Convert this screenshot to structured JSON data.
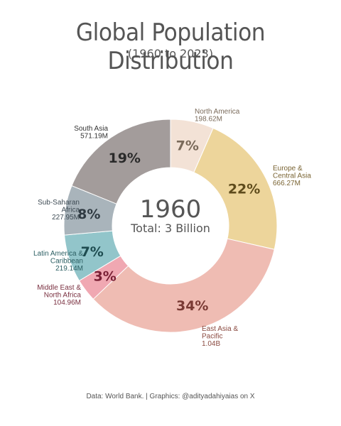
{
  "title": "Global Population Distribution",
  "subtitle": "(1960 to 2023)",
  "footer": "Data: World Bank.  |  Graphics: @adityadahiyaias on X",
  "chart_data": {
    "type": "pie",
    "variant": "donut",
    "center_year": "1960",
    "center_total": "Total: 3 Billion",
    "slices": [
      {
        "name": "North America",
        "lines": [
          "North America"
        ],
        "value_label": "198.62M",
        "value": 198.62,
        "pct_label": "7%",
        "color": "#f3e2d6",
        "text_color": "#7a6a5a",
        "pct_color": "#7a6a5a"
      },
      {
        "name": "Europe & Central Asia",
        "lines": [
          "Europe &",
          "Central Asia"
        ],
        "value_label": "666.27M",
        "value": 666.27,
        "pct_label": "22%",
        "color": "#edd59b",
        "text_color": "#7a6433",
        "pct_color": "#5f4c1c"
      },
      {
        "name": "East Asia & Pacific",
        "lines": [
          "East Asia &",
          "Pacific"
        ],
        "value_label": "1.04B",
        "value": 1040,
        "pct_label": "34%",
        "color": "#efbcb3",
        "text_color": "#8a4a40",
        "pct_color": "#7a3a34"
      },
      {
        "name": "Middle East & North Africa",
        "lines": [
          "Middle East &",
          "North Africa"
        ],
        "value_label": "104.96M",
        "value": 104.96,
        "pct_label": "3%",
        "color": "#f0a8b2",
        "text_color": "#7a3040",
        "pct_color": "#7a2035"
      },
      {
        "name": "Latin America & Caribbean",
        "lines": [
          "Latin America &",
          "Caribbean"
        ],
        "value_label": "219.14M",
        "value": 219.14,
        "pct_label": "7%",
        "color": "#92c5ca",
        "text_color": "#2c5f63",
        "pct_color": "#1e4c50"
      },
      {
        "name": "Sub-Saharan Africa",
        "lines": [
          "Sub-Saharan",
          "Africa"
        ],
        "value_label": "227.95M",
        "value": 227.95,
        "pct_label": "8%",
        "color": "#a9b4bb",
        "text_color": "#3f4c55",
        "pct_color": "#2f3a42"
      },
      {
        "name": "South Asia",
        "lines": [
          "South Asia"
        ],
        "value_label": "571.19M",
        "value": 571.19,
        "pct_label": "19%",
        "color": "#a39c9b",
        "text_color": "#333333",
        "pct_color": "#2a2a2a"
      }
    ]
  }
}
